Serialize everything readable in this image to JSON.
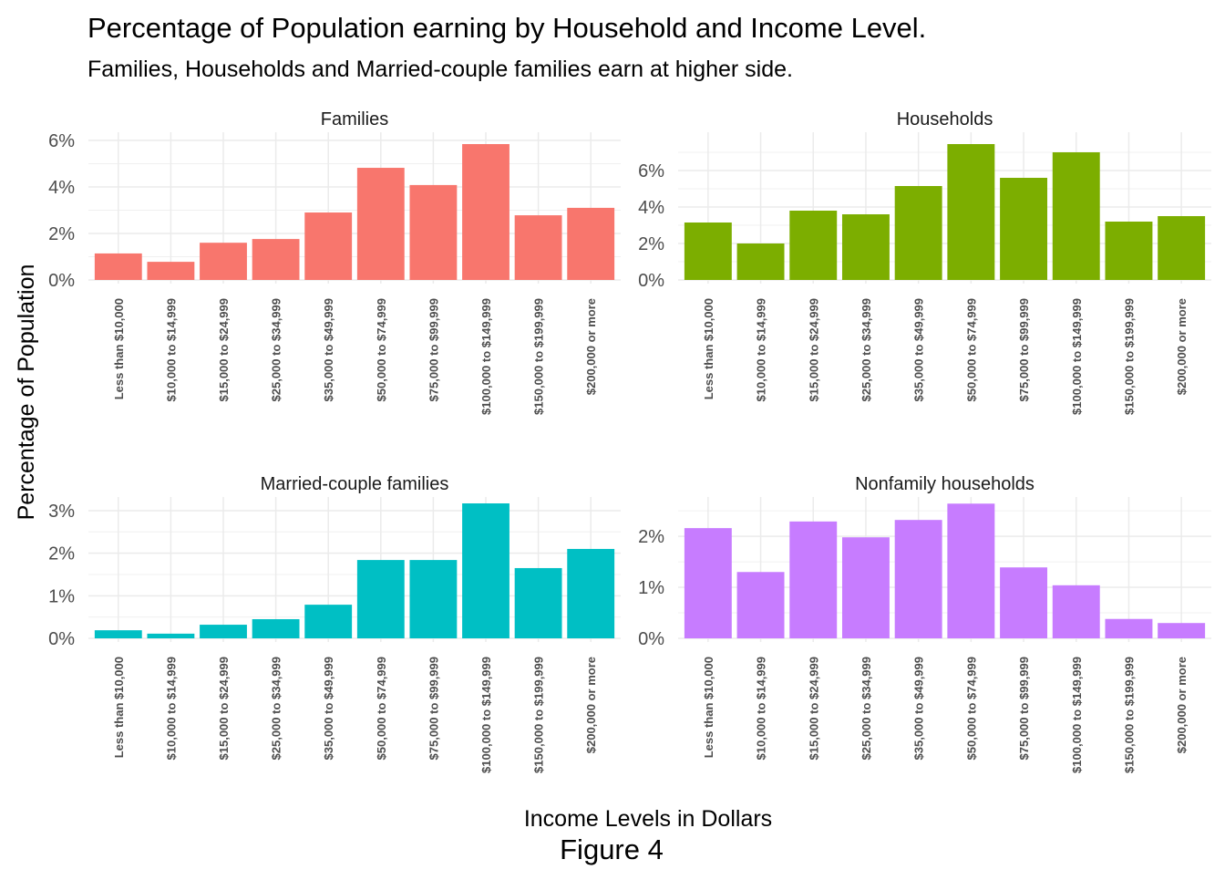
{
  "title": "Percentage of Population earning by Household and Income Level.",
  "subtitle": "Families, Households and Married-couple families earn at higher side.",
  "xlabel": "Income Levels in Dollars",
  "ylabel": "Percentage of Population",
  "caption": "Figure 4",
  "chart_data": {
    "type": "bar",
    "title": "Percentage of Population earning by Household and Income Level.",
    "xlabel": "Income Levels in Dollars",
    "ylabel": "Percentage of Population",
    "grid": true,
    "categories": [
      "Less than $10,000",
      "$10,000 to $14,999",
      "$15,000 to $24,999",
      "$25,000 to $34,999",
      "$35,000 to $49,999",
      "$50,000 to $74,999",
      "$75,000 to $99,999",
      "$100,000 to $149,999",
      "$150,000 to $199,999",
      "$200,000 or more"
    ],
    "panels": [
      {
        "name": "Families",
        "color": "#F8766D",
        "ylim": [
          0,
          6.35
        ],
        "yticks": [
          0,
          2,
          4,
          6
        ],
        "tick_labels": [
          "0%",
          "2%",
          "4%",
          "6%"
        ],
        "values": [
          1.14,
          0.78,
          1.6,
          1.76,
          2.9,
          4.82,
          4.08,
          5.84,
          2.78,
          3.1
        ]
      },
      {
        "name": "Households",
        "color": "#7CAE00",
        "ylim": [
          0,
          8.1
        ],
        "yticks": [
          0,
          2,
          4,
          6
        ],
        "tick_labels": [
          "0%",
          "2%",
          "4%",
          "6%"
        ],
        "values": [
          3.15,
          2.0,
          3.8,
          3.6,
          5.15,
          7.45,
          5.6,
          7.0,
          3.2,
          3.5
        ]
      },
      {
        "name": "Married-couple families",
        "color": "#00BFC4",
        "ylim": [
          0,
          3.32
        ],
        "yticks": [
          0,
          1,
          2,
          3
        ],
        "tick_labels": [
          "0%",
          "1%",
          "2%",
          "3%"
        ],
        "values": [
          0.19,
          0.11,
          0.32,
          0.45,
          0.79,
          1.84,
          1.84,
          3.17,
          1.65,
          2.1
        ]
      },
      {
        "name": "Nonfamily households",
        "color": "#C77CFF",
        "ylim": [
          0,
          2.77
        ],
        "yticks": [
          0,
          1,
          2
        ],
        "tick_labels": [
          "0%",
          "1%",
          "2%"
        ],
        "values": [
          2.16,
          1.3,
          2.29,
          1.98,
          2.32,
          2.64,
          1.39,
          1.04,
          0.38,
          0.3
        ]
      }
    ]
  }
}
